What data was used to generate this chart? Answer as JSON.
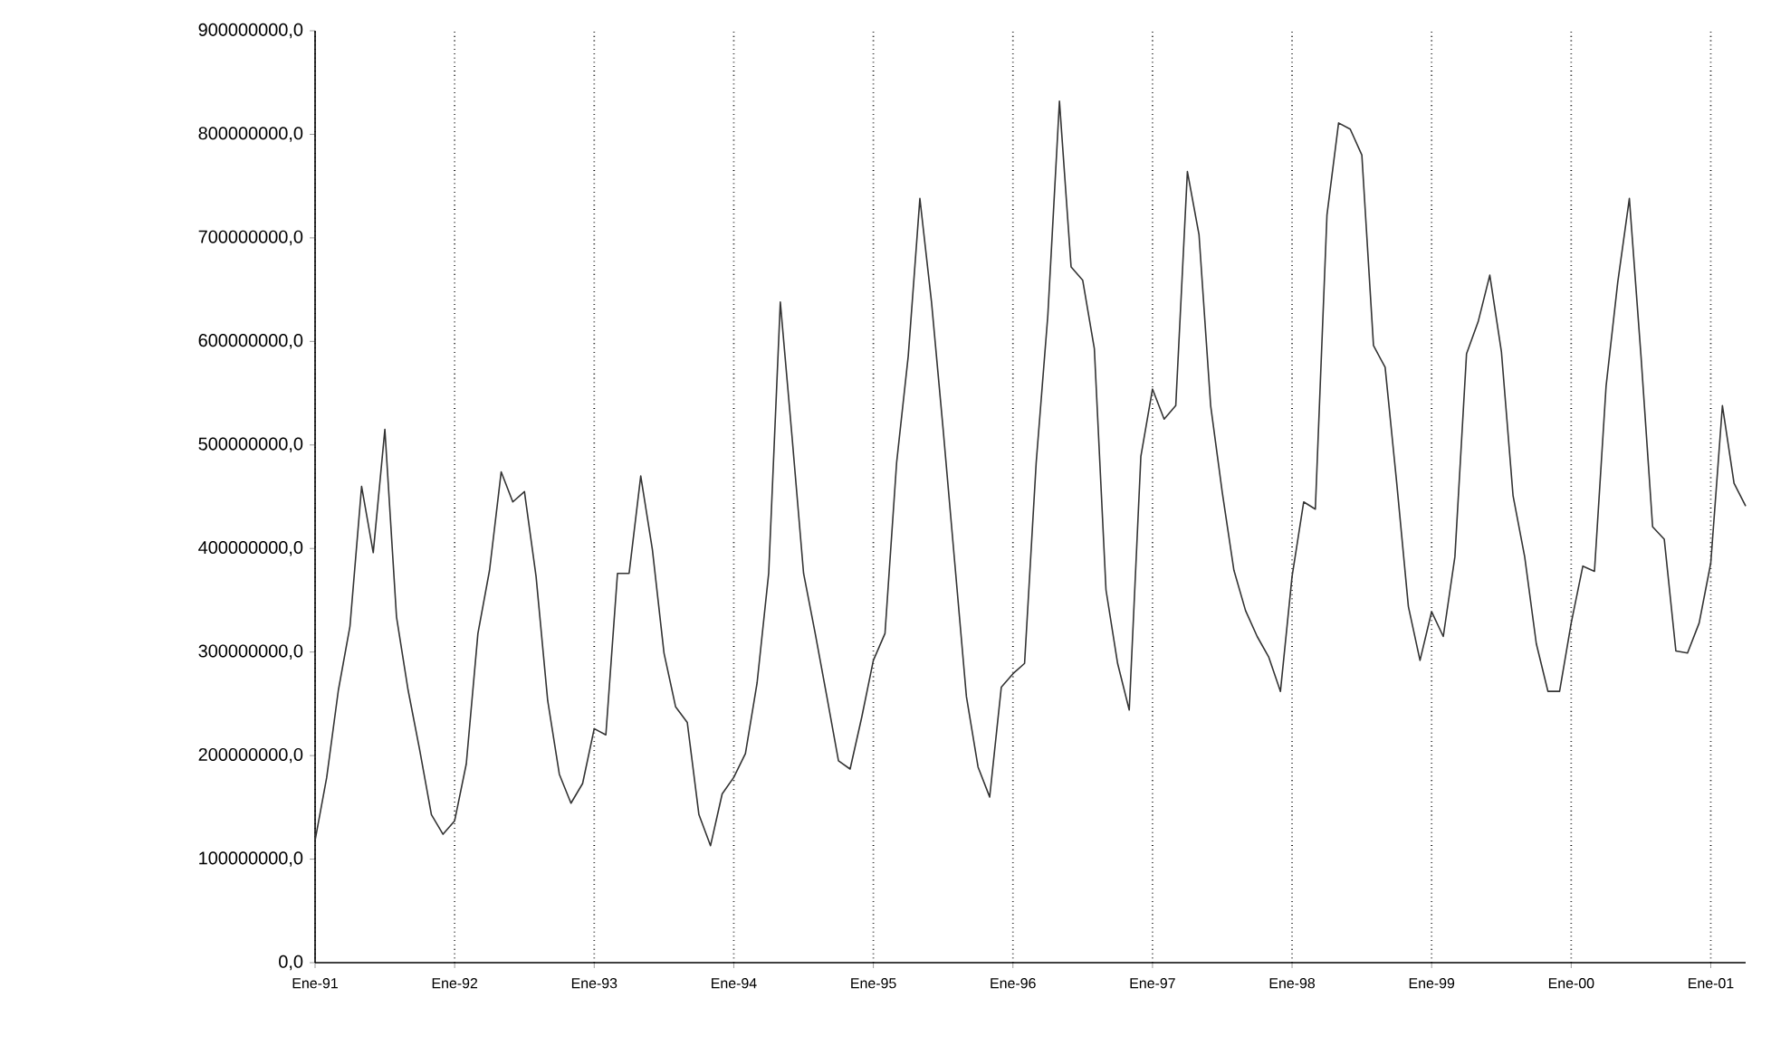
{
  "chart_data": {
    "type": "line",
    "x": [
      "1991-01",
      "1991-02",
      "1991-03",
      "1991-04",
      "1991-05",
      "1991-06",
      "1991-07",
      "1991-08",
      "1991-09",
      "1991-10",
      "1991-11",
      "1991-12",
      "1992-01",
      "1992-02",
      "1992-03",
      "1992-04",
      "1992-05",
      "1992-06",
      "1992-07",
      "1992-08",
      "1992-09",
      "1992-10",
      "1992-11",
      "1992-12",
      "1993-01",
      "1993-02",
      "1993-03",
      "1993-04",
      "1993-05",
      "1993-06",
      "1993-07",
      "1993-08",
      "1993-09",
      "1993-10",
      "1993-11",
      "1993-12",
      "1994-01",
      "1994-02",
      "1994-03",
      "1994-04",
      "1994-05",
      "1994-06",
      "1994-07",
      "1994-08",
      "1994-09",
      "1994-10",
      "1994-11",
      "1994-12",
      "1995-01",
      "1995-02",
      "1995-03",
      "1995-04",
      "1995-05",
      "1995-06",
      "1995-07",
      "1995-08",
      "1995-09",
      "1995-10",
      "1995-11",
      "1995-12",
      "1996-01",
      "1996-02",
      "1996-03",
      "1996-04",
      "1996-05",
      "1996-06",
      "1996-07",
      "1996-08",
      "1996-09",
      "1996-10",
      "1996-11",
      "1996-12",
      "1997-01",
      "1997-02",
      "1997-03",
      "1997-04",
      "1997-05",
      "1997-06",
      "1997-07",
      "1997-08",
      "1997-09",
      "1997-10",
      "1997-11",
      "1997-12",
      "1998-01",
      "1998-02",
      "1998-03",
      "1998-04",
      "1998-05",
      "1998-06",
      "1998-07",
      "1998-08",
      "1998-09",
      "1998-10",
      "1998-11",
      "1998-12",
      "1999-01",
      "1999-02",
      "1999-03",
      "1999-04",
      "1999-05",
      "1999-06",
      "1999-07",
      "1999-08",
      "1999-09",
      "1999-10",
      "1999-11",
      "1999-12",
      "2000-01",
      "2000-02",
      "2000-03",
      "2000-04",
      "2000-05",
      "2000-06",
      "2000-07",
      "2000-08",
      "2000-09",
      "2000-10",
      "2000-11",
      "2000-12",
      "2001-01",
      "2001-02",
      "2001-03",
      "2001-04"
    ],
    "values": [
      118000000,
      179000000,
      263000000,
      325000000,
      460000000,
      396000000,
      515000000,
      334000000,
      263000000,
      205000000,
      143000000,
      124000000,
      137000000,
      192000000,
      318000000,
      379000000,
      474000000,
      445000000,
      455000000,
      373000000,
      253000000,
      182000000,
      154000000,
      173000000,
      226000000,
      220000000,
      376000000,
      376000000,
      470000000,
      399000000,
      299000000,
      247000000,
      232000000,
      143000000,
      113000000,
      163000000,
      179000000,
      202000000,
      270000000,
      376000000,
      638000000,
      509000000,
      376000000,
      318000000,
      257000000,
      195000000,
      187000000,
      237000000,
      292000000,
      318000000,
      483000000,
      586000000,
      738000000,
      638000000,
      515000000,
      386000000,
      257000000,
      189000000,
      160000000,
      266000000,
      279000000,
      289000000,
      483000000,
      625000000,
      832000000,
      672000000,
      659000000,
      593000000,
      360000000,
      289000000,
      244000000,
      489000000,
      554000000,
      525000000,
      538000000,
      764000000,
      703000000,
      538000000,
      454000000,
      379000000,
      340000000,
      315000000,
      295000000,
      262000000,
      373000000,
      445000000,
      438000000,
      722000000,
      811000000,
      805000000,
      780000000,
      596000000,
      575000000,
      463000000,
      344000000,
      292000000,
      339000000,
      315000000,
      392000000,
      588000000,
      619000000,
      664000000,
      590000000,
      451000000,
      392000000,
      308000000,
      262000000,
      262000000,
      328000000,
      383000000,
      378000000,
      557000000,
      657000000,
      738000000,
      586000000,
      421000000,
      409000000,
      301000000,
      299000000,
      328000000,
      386000000,
      538000000,
      463000000,
      441000000
    ],
    "color": "#333333",
    "line_style": "solid",
    "marker": "none",
    "xlim": [
      "1991-01",
      "2001-04"
    ],
    "xticks": [
      {
        "value": "1991-01",
        "label": "Ene-91"
      },
      {
        "value": "1992-01",
        "label": "Ene-92"
      },
      {
        "value": "1993-01",
        "label": "Ene-93"
      },
      {
        "value": "1994-01",
        "label": "Ene-94"
      },
      {
        "value": "1995-01",
        "label": "Ene-95"
      },
      {
        "value": "1996-01",
        "label": "Ene-96"
      },
      {
        "value": "1997-01",
        "label": "Ene-97"
      },
      {
        "value": "1998-01",
        "label": "Ene-98"
      },
      {
        "value": "1999-01",
        "label": "Ene-99"
      },
      {
        "value": "2000-01",
        "label": "Ene-00"
      },
      {
        "value": "2001-01",
        "label": "Ene-01"
      }
    ],
    "ylim": [
      0,
      900000000
    ],
    "yticks": [
      {
        "value": 0,
        "label": "0,0"
      },
      {
        "value": 100000000,
        "label": "100000000,0"
      },
      {
        "value": 200000000,
        "label": "200000000,0"
      },
      {
        "value": 300000000,
        "label": "300000000,0"
      },
      {
        "value": 400000000,
        "label": "400000000,0"
      },
      {
        "value": 500000000,
        "label": "500000000,0"
      },
      {
        "value": 600000000,
        "label": "600000000,0"
      },
      {
        "value": 700000000,
        "label": "700000000,0"
      },
      {
        "value": 800000000,
        "label": "800000000,0"
      },
      {
        "value": 900000000,
        "label": "900000000,0"
      }
    ],
    "grid": "x"
  }
}
